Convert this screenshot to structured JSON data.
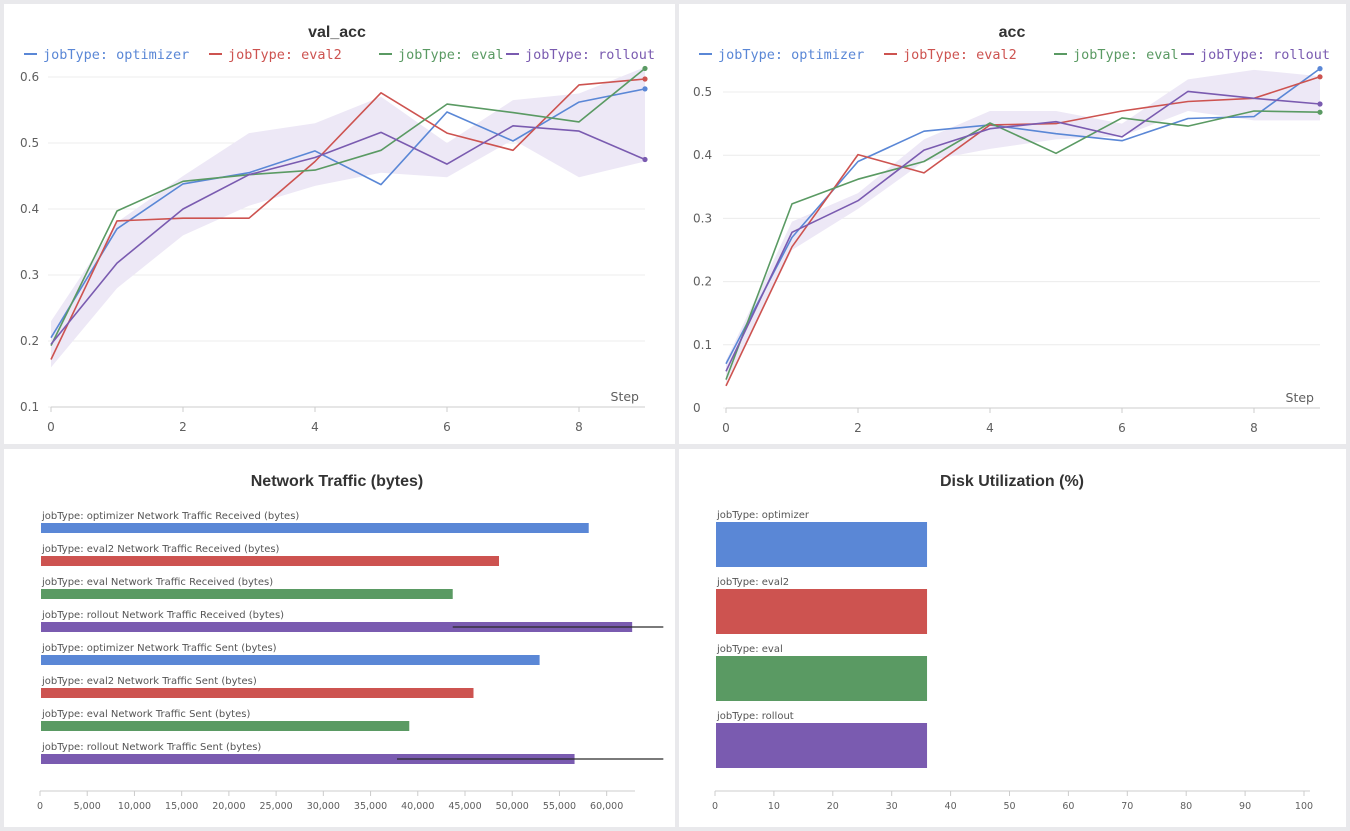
{
  "colors": {
    "optimizer": "#5a87d6",
    "eval2": "#cd5350",
    "eval": "#5a9a63",
    "rollout": "#7a5bb0",
    "band": "#ede8f6",
    "grid": "#ececec",
    "axis": "#cccccc"
  },
  "chart_data": [
    {
      "type": "line",
      "title": "val_acc",
      "xlabel": "Step",
      "ylabel": "",
      "xlim": [
        0,
        9
      ],
      "ylim": [
        0.1,
        0.6
      ],
      "xticks": [
        0,
        2,
        4,
        6,
        8
      ],
      "yticks": [
        0.1,
        0.2,
        0.3,
        0.4,
        0.5,
        0.6
      ],
      "ytick_labels": [
        "0.1",
        "0.2",
        "0.3",
        "0.4",
        "0.5",
        "0.6"
      ],
      "legend_position": "top",
      "x": [
        0,
        1,
        2,
        3,
        4,
        5,
        6,
        7,
        8,
        9
      ],
      "series": [
        {
          "name": "jobType: optimizer",
          "key": "optimizer",
          "values": [
            0.205,
            0.37,
            0.438,
            0.455,
            0.488,
            0.437,
            0.547,
            0.503,
            0.562,
            0.582
          ]
        },
        {
          "name": "jobType: eval2",
          "key": "eval2",
          "values": [
            0.172,
            0.382,
            0.386,
            0.386,
            0.472,
            0.576,
            0.515,
            0.489,
            0.588,
            0.597
          ]
        },
        {
          "name": "jobType: eval",
          "key": "eval",
          "values": [
            0.193,
            0.397,
            0.442,
            0.452,
            0.459,
            0.489,
            0.559,
            0.546,
            0.532,
            0.613
          ]
        },
        {
          "name": "jobType: rollout",
          "key": "rollout",
          "values": [
            0.195,
            0.318,
            0.4,
            0.452,
            0.478,
            0.516,
            0.468,
            0.526,
            0.518,
            0.475
          ]
        }
      ],
      "band": {
        "key": "rollout",
        "lower": [
          0.16,
          0.28,
          0.36,
          0.405,
          0.435,
          0.455,
          0.448,
          0.505,
          0.448,
          0.472
        ],
        "upper": [
          0.23,
          0.38,
          0.45,
          0.515,
          0.53,
          0.57,
          0.5,
          0.565,
          0.575,
          0.615
        ]
      }
    },
    {
      "type": "line",
      "title": "acc",
      "xlabel": "Step",
      "ylabel": "",
      "xlim": [
        0,
        9
      ],
      "ylim": [
        0,
        0.5
      ],
      "xticks": [
        0,
        2,
        4,
        6,
        8
      ],
      "yticks": [
        0,
        0.1,
        0.2,
        0.3,
        0.4,
        0.5
      ],
      "ytick_labels": [
        "0",
        "0.1",
        "0.2",
        "0.3",
        "0.4",
        "0.5"
      ],
      "legend_position": "top",
      "x": [
        0,
        1,
        2,
        3,
        4,
        5,
        6,
        7,
        8,
        9
      ],
      "series": [
        {
          "name": "jobType: optimizer",
          "key": "optimizer",
          "values": [
            0.07,
            0.27,
            0.39,
            0.438,
            0.448,
            0.434,
            0.423,
            0.458,
            0.461,
            0.537
          ]
        },
        {
          "name": "jobType: eval2",
          "key": "eval2",
          "values": [
            0.035,
            0.255,
            0.401,
            0.372,
            0.448,
            0.45,
            0.47,
            0.485,
            0.49,
            0.524
          ]
        },
        {
          "name": "jobType: eval",
          "key": "eval",
          "values": [
            0.045,
            0.323,
            0.362,
            0.39,
            0.451,
            0.403,
            0.459,
            0.446,
            0.47,
            0.468
          ]
        },
        {
          "name": "jobType: rollout",
          "key": "rollout",
          "values": [
            0.058,
            0.278,
            0.328,
            0.408,
            0.442,
            0.453,
            0.429,
            0.501,
            0.49,
            0.481
          ]
        }
      ],
      "band": {
        "key": "rollout",
        "lower": [
          0.04,
          0.25,
          0.315,
          0.39,
          0.41,
          0.425,
          0.43,
          0.47,
          0.455,
          0.455
        ],
        "upper": [
          0.075,
          0.295,
          0.34,
          0.425,
          0.47,
          0.47,
          0.45,
          0.52,
          0.535,
          0.525
        ]
      }
    },
    {
      "type": "bar",
      "orientation": "horizontal",
      "title": "Network Traffic (bytes)",
      "xlim": [
        0,
        63000
      ],
      "xticks": [
        0,
        5000,
        10000,
        15000,
        20000,
        25000,
        30000,
        35000,
        40000,
        45000,
        50000,
        55000,
        60000
      ],
      "xtick_labels": [
        "0",
        "5,000",
        "10,000",
        "15,000",
        "20,000",
        "25,000",
        "30,000",
        "35,000",
        "40,000",
        "45,000",
        "50,000",
        "55,000",
        "60,000"
      ],
      "categories": [
        "jobType: optimizer Network Traffic Received (bytes)",
        "jobType: eval2 Network Traffic Received (bytes)",
        "jobType: eval Network Traffic Received (bytes)",
        "jobType: rollout Network Traffic Received (bytes)",
        "jobType: optimizer Network Traffic Sent (bytes)",
        "jobType: eval2 Network Traffic Sent (bytes)",
        "jobType: eval Network Traffic Sent (bytes)",
        "jobType: rollout Network Traffic Sent (bytes)"
      ],
      "values": [
        58100,
        48600,
        43700,
        62700,
        52900,
        45900,
        39100,
        56600
      ],
      "keys": [
        "optimizer",
        "eval2",
        "eval",
        "rollout",
        "optimizer",
        "eval2",
        "eval",
        "rollout"
      ],
      "error_ranges": [
        null,
        null,
        null,
        [
          43700,
          66000
        ],
        null,
        null,
        null,
        [
          37800,
          66000
        ]
      ]
    },
    {
      "type": "bar",
      "orientation": "horizontal",
      "title": "Disk Utilization (%)",
      "xlim": [
        0,
        100
      ],
      "xticks": [
        0,
        10,
        20,
        30,
        40,
        50,
        60,
        70,
        80,
        90,
        100
      ],
      "xtick_labels": [
        "0",
        "10",
        "20",
        "30",
        "40",
        "50",
        "60",
        "70",
        "80",
        "90",
        "100"
      ],
      "categories": [
        "jobType: optimizer",
        "jobType: eval2",
        "jobType: eval",
        "jobType: rollout"
      ],
      "values": [
        36,
        36,
        36,
        36
      ],
      "keys": [
        "optimizer",
        "eval2",
        "eval",
        "rollout"
      ]
    }
  ]
}
